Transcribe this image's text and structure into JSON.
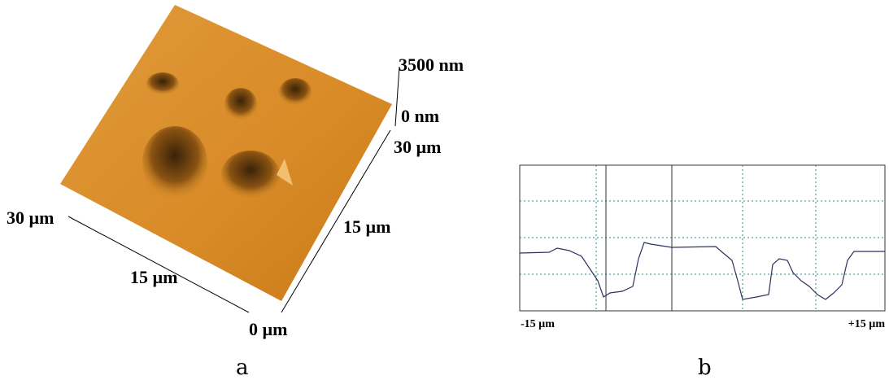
{
  "panel_a": {
    "z_top": "3500 nm",
    "z_bottom": "0 nm",
    "right_axis_end": "30 µm",
    "right_axis_mid": "15 µm",
    "left_axis_end": "30 µm",
    "left_axis_mid": "15 µm",
    "origin": "0 µm",
    "caption": "a"
  },
  "panel_b": {
    "x_left": "-15 µm",
    "x_right": "+15 µm",
    "caption": "b"
  }
}
